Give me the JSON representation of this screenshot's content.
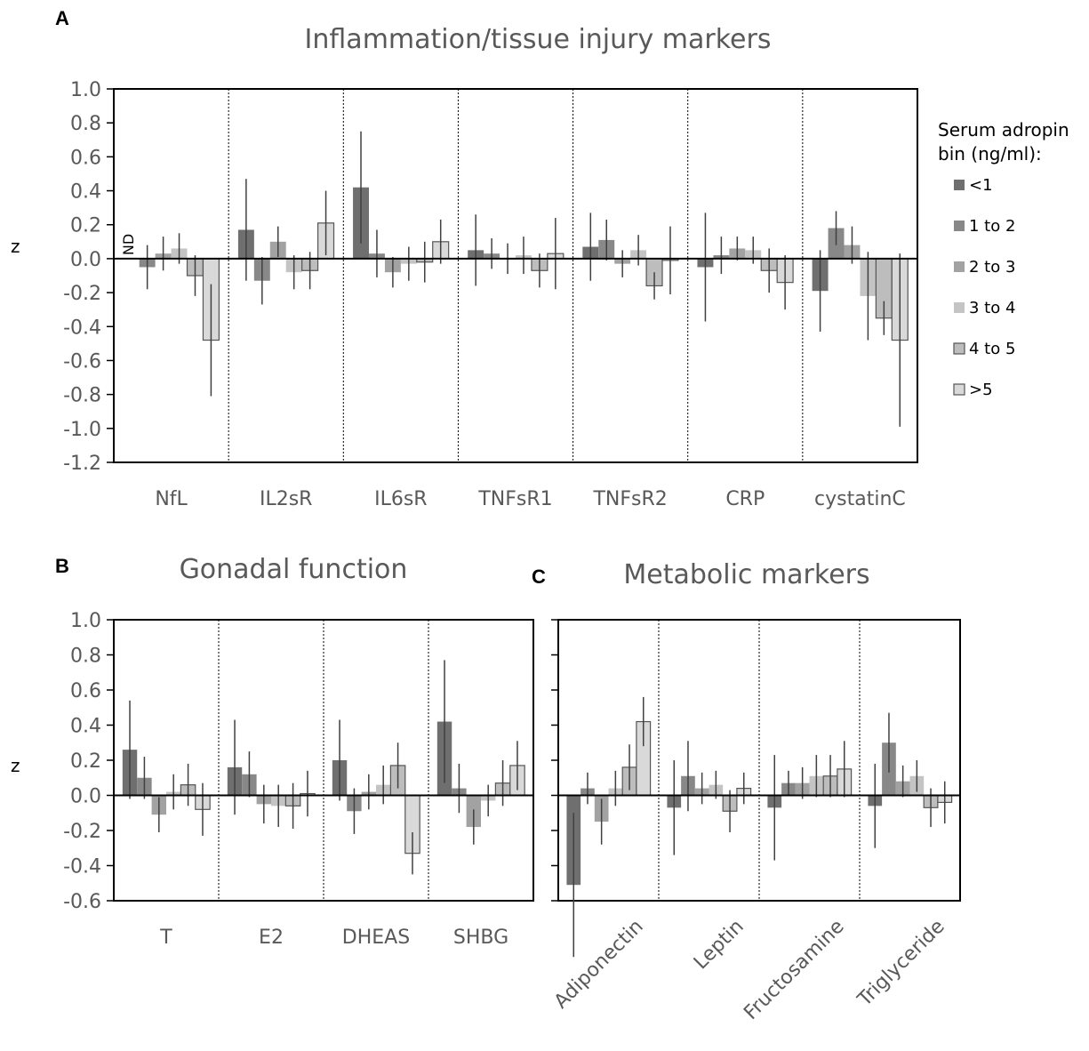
{
  "legend": {
    "title_line1": "Serum adropin",
    "title_line2": "bin (ng/ml):",
    "colors": [
      "#6f6f6f",
      "#888888",
      "#a2a2a2",
      "#c4c4c4",
      "#bdbdbd",
      "#d9d9d9"
    ],
    "outlined": [
      false,
      false,
      false,
      false,
      true,
      true
    ]
  },
  "chart_data": [
    {
      "panel": "A",
      "type": "bar",
      "title": "Inflammation/tissue injury markers",
      "ylabel": "z",
      "ylim": [
        -1.2,
        1.0
      ],
      "yticks": [
        "1.0",
        "0.8",
        "0.6",
        "0.4",
        "0.2",
        "0.0",
        "-0.2",
        "-0.4",
        "-0.6",
        "-0.8",
        "-1.0",
        "-1.2"
      ],
      "categories": [
        "NfL",
        "IL2sR",
        "IL6sR",
        "TNFsR1",
        "TNFsR2",
        "CRP",
        "cystatinC"
      ],
      "annotation": "ND",
      "series": [
        {
          "name": "<1",
          "values": [
            null,
            0.17,
            0.42,
            0.05,
            0.07,
            -0.05,
            -0.19
          ],
          "err": [
            null,
            0.3,
            0.33,
            0.21,
            0.2,
            0.32,
            0.24
          ]
        },
        {
          "name": "1 to 2",
          "values": [
            -0.05,
            -0.13,
            0.03,
            0.03,
            0.11,
            0.02,
            0.18
          ],
          "err": [
            0.13,
            0.14,
            0.14,
            0.09,
            0.12,
            0.11,
            0.1
          ]
        },
        {
          "name": "2 to 3",
          "values": [
            0.03,
            0.1,
            -0.08,
            0.0,
            -0.03,
            0.06,
            0.08
          ],
          "err": [
            0.1,
            0.09,
            0.09,
            0.09,
            0.08,
            0.07,
            0.11
          ]
        },
        {
          "name": "3 to 4",
          "values": [
            0.06,
            -0.08,
            -0.03,
            0.02,
            0.05,
            0.05,
            -0.22
          ],
          "err": [
            0.09,
            0.1,
            0.1,
            0.11,
            0.09,
            0.08,
            0.26
          ]
        },
        {
          "name": "4 to 5",
          "values": [
            -0.1,
            -0.07,
            -0.02,
            -0.07,
            -0.16,
            -0.07,
            -0.35
          ],
          "err": [
            0.12,
            0.11,
            0.12,
            0.1,
            0.08,
            0.13,
            0.1
          ]
        },
        {
          "name": ">5",
          "values": [
            -0.48,
            0.21,
            0.1,
            0.03,
            -0.01,
            -0.14,
            -0.48
          ],
          "err": [
            0.33,
            0.19,
            0.13,
            0.21,
            0.2,
            0.16,
            0.51
          ]
        }
      ]
    },
    {
      "panel": "B",
      "type": "bar",
      "title": "Gonadal function",
      "ylabel": "z",
      "ylim": [
        -0.6,
        1.0
      ],
      "yticks": [
        "1.0",
        "0.8",
        "0.6",
        "0.4",
        "0.2",
        "0.0",
        "-0.2",
        "-0.4",
        "-0.6"
      ],
      "categories": [
        "T",
        "E2",
        "DHEAS",
        "SHBG"
      ],
      "series": [
        {
          "name": "<1",
          "values": [
            0.26,
            0.16,
            0.2,
            0.42
          ],
          "err": [
            0.28,
            0.27,
            0.23,
            0.35
          ]
        },
        {
          "name": "1 to 2",
          "values": [
            0.1,
            0.12,
            -0.09,
            0.04
          ],
          "err": [
            0.12,
            0.13,
            0.13,
            0.14
          ]
        },
        {
          "name": "2 to 3",
          "values": [
            -0.11,
            -0.05,
            0.02,
            -0.18
          ],
          "err": [
            0.1,
            0.11,
            0.1,
            0.1
          ]
        },
        {
          "name": "3 to 4",
          "values": [
            0.02,
            -0.06,
            0.06,
            -0.03
          ],
          "err": [
            0.1,
            0.12,
            0.11,
            0.09
          ]
        },
        {
          "name": "4 to 5",
          "values": [
            0.06,
            -0.06,
            0.17,
            0.07
          ],
          "err": [
            0.12,
            0.13,
            0.13,
            0.13
          ]
        },
        {
          "name": ">5",
          "values": [
            -0.08,
            0.01,
            -0.33,
            0.17
          ],
          "err": [
            0.15,
            0.13,
            0.12,
            0.14
          ]
        }
      ]
    },
    {
      "panel": "C",
      "type": "bar",
      "title": "Metabolic markers",
      "ylim": [
        -0.6,
        1.0
      ],
      "categories": [
        "Adiponectin",
        "Leptin",
        "Fructosamine",
        "Triglyceride"
      ],
      "series": [
        {
          "name": "<1",
          "values": [
            -0.51,
            -0.07,
            -0.07,
            -0.06
          ],
          "err": [
            0.41,
            0.27,
            0.3,
            0.24
          ]
        },
        {
          "name": "1 to 2",
          "values": [
            0.04,
            0.11,
            0.07,
            0.3
          ],
          "err": [
            0.09,
            0.2,
            0.07,
            0.17
          ]
        },
        {
          "name": "2 to 3",
          "values": [
            -0.15,
            0.04,
            0.07,
            0.08
          ],
          "err": [
            0.13,
            0.09,
            0.09,
            0.09
          ]
        },
        {
          "name": "3 to 4",
          "values": [
            0.04,
            0.06,
            0.11,
            0.11
          ],
          "err": [
            0.1,
            0.08,
            0.12,
            0.09
          ]
        },
        {
          "name": "4 to 5",
          "values": [
            0.16,
            -0.09,
            0.11,
            -0.07
          ],
          "err": [
            0.13,
            0.12,
            0.12,
            0.11
          ]
        },
        {
          "name": ">5",
          "values": [
            0.42,
            0.04,
            0.15,
            -0.04
          ],
          "err": [
            0.14,
            0.09,
            0.16,
            0.12
          ]
        }
      ]
    }
  ]
}
